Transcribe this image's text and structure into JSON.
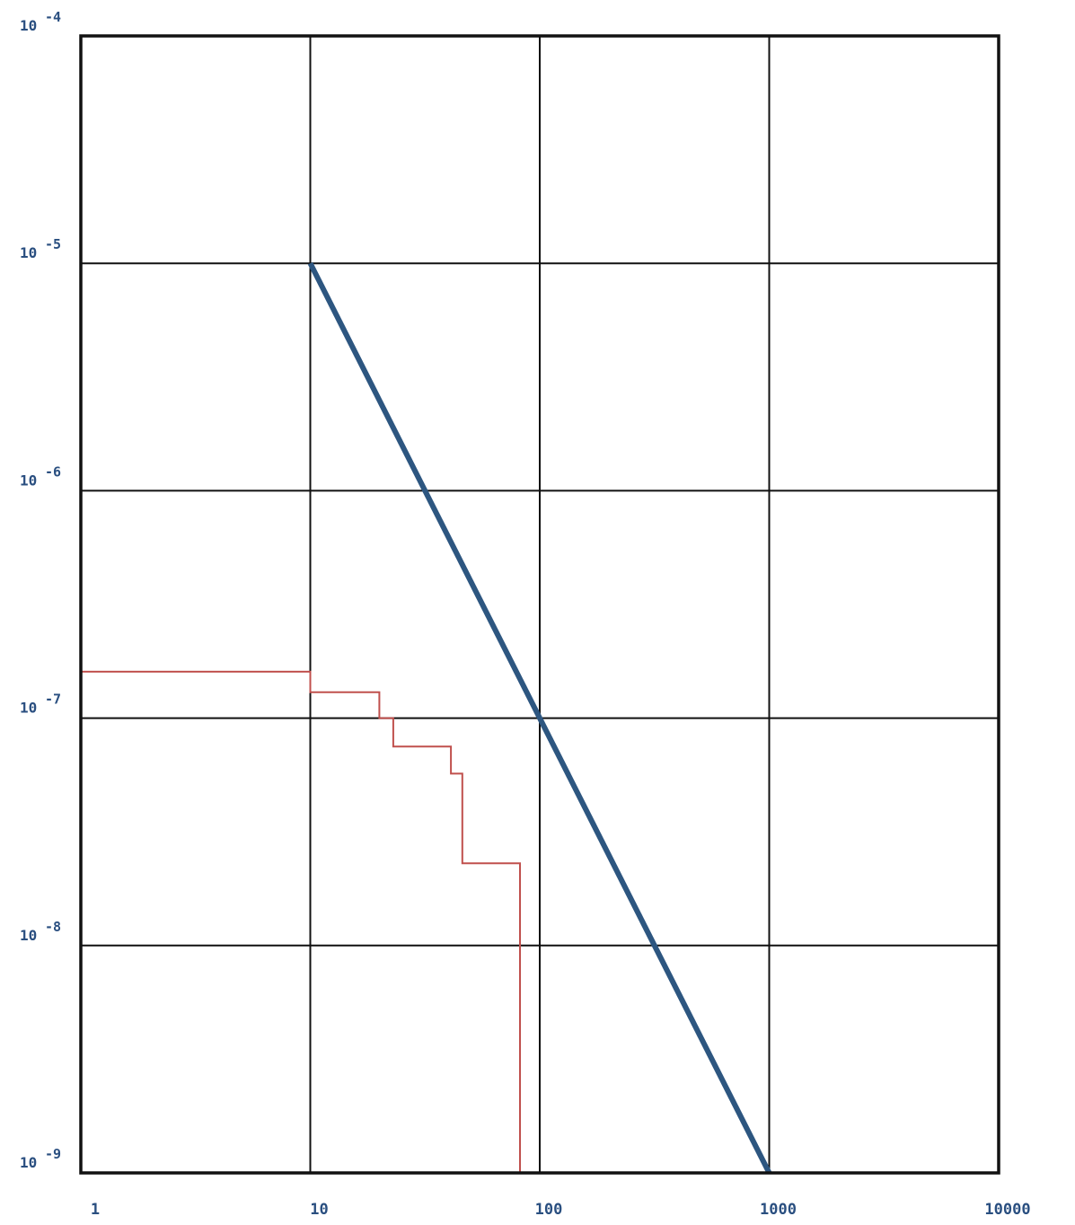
{
  "colors": {
    "background": "#ffffff",
    "grid": "#111111",
    "frame": "#111111",
    "tick_text": "#2a4f80",
    "limit_line": "#2d5680",
    "measured_step": "#c0504d"
  },
  "chart_data": {
    "type": "line",
    "xscale": "log",
    "yscale": "log",
    "xlim": [
      1,
      10000
    ],
    "ylim": [
      1e-09,
      0.0001
    ],
    "grid": true,
    "title": "",
    "xlabel": "",
    "ylabel": "",
    "x_ticks": [
      {
        "value": 1,
        "label": "1"
      },
      {
        "value": 10,
        "label": "10"
      },
      {
        "value": 100,
        "label": "100"
      },
      {
        "value": 1000,
        "label": "1000"
      },
      {
        "value": 10000,
        "label": "10000"
      }
    ],
    "y_ticks": [
      {
        "value": 0.0001,
        "base": "10",
        "exponent": "-4"
      },
      {
        "value": 1e-05,
        "base": "10",
        "exponent": "-5"
      },
      {
        "value": 1e-06,
        "base": "10",
        "exponent": "-6"
      },
      {
        "value": 1e-07,
        "base": "10",
        "exponent": "-7"
      },
      {
        "value": 1e-08,
        "base": "10",
        "exponent": "-8"
      },
      {
        "value": 1e-09,
        "base": "10",
        "exponent": "-9"
      }
    ],
    "series": [
      {
        "style": "straight",
        "color": "#2d5680",
        "points": [
          [
            10,
            1e-05
          ],
          [
            1000,
            1e-09
          ]
        ]
      },
      {
        "style": "step",
        "color": "#c0504d",
        "points": [
          [
            1,
            1.6e-07
          ],
          [
            10,
            1.6e-07
          ],
          [
            10,
            1.3e-07
          ],
          [
            20,
            1.3e-07
          ],
          [
            20,
            1e-07
          ],
          [
            23,
            1e-07
          ],
          [
            23,
            7.5e-08
          ],
          [
            41,
            7.5e-08
          ],
          [
            41,
            5.7e-08
          ],
          [
            46,
            5.7e-08
          ],
          [
            46,
            2.3e-08
          ],
          [
            82,
            2.3e-08
          ],
          [
            82,
            1e-09
          ]
        ]
      }
    ]
  }
}
